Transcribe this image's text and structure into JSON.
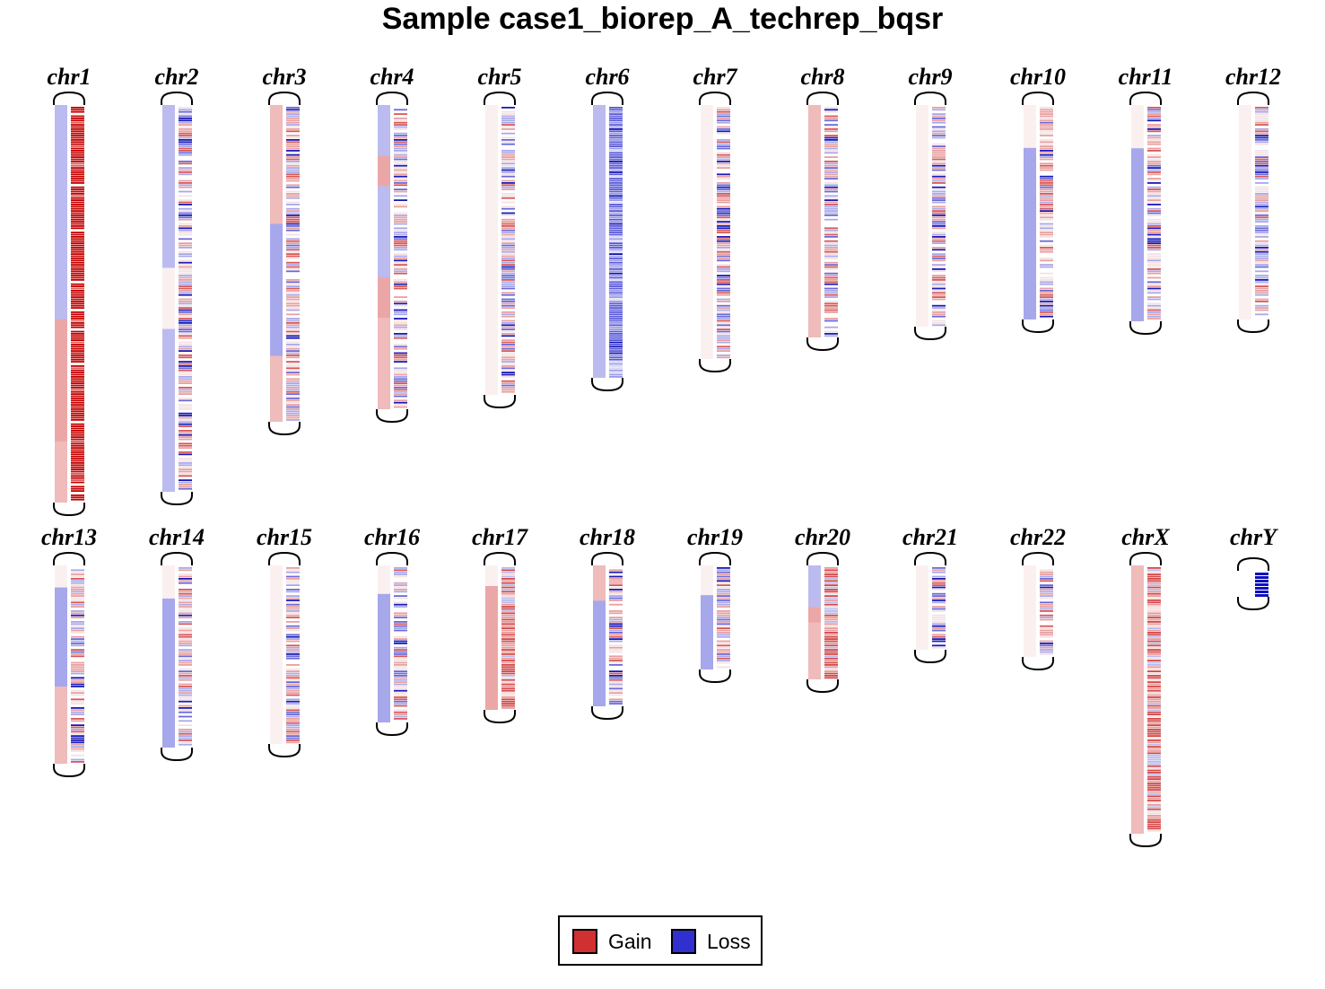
{
  "title": "Sample case1_biorep_A_techrep_bqsr",
  "legend": [
    {
      "label": "Gain",
      "color": "#d03030"
    },
    {
      "label": "Loss",
      "color": "#3030d0"
    }
  ],
  "colors": {
    "gain_strong": "#c00000",
    "loss_strong": "#0000c0",
    "neutral": "#fdf4f4",
    "outline": "#000000"
  },
  "chart_data": {
    "type": "heatmap",
    "description_note": "Karyogram of copy-number segments per chromosome; left track = segment calls, right track = bin-level log2 ratios",
    "chromosomes": [
      {
        "name": "chr1",
        "segments": [
          [
            "loss",
            0.35
          ],
          [
            "gain",
            0.2
          ],
          [
            "gain",
            0.05
          ]
        ],
        "bins": "strong-gain"
      },
      {
        "name": "chr2",
        "segments": [
          [
            "loss",
            0.4
          ],
          [
            "neutral",
            0.15
          ],
          [
            "loss",
            0.4
          ]
        ],
        "bins": "mixed"
      },
      {
        "name": "chr3",
        "segments": [
          [
            "gain",
            0.45
          ],
          [
            "loss",
            0.5
          ],
          [
            "gain",
            0.25
          ]
        ],
        "bins": "mixed"
      },
      {
        "name": "chr4",
        "segments": [
          [
            "loss",
            0.25
          ],
          [
            "gain",
            0.15
          ],
          [
            "loss",
            0.45
          ],
          [
            "gain",
            0.2
          ],
          [
            "gain",
            0.45
          ]
        ],
        "bins": "mixed"
      },
      {
        "name": "chr5",
        "segments": [
          [
            "neutral",
            0.05
          ]
        ],
        "bins": "mixed"
      },
      {
        "name": "chr6",
        "segments": [
          [
            "loss",
            0.45
          ]
        ],
        "bins": "loss"
      },
      {
        "name": "chr7",
        "segments": [
          [
            "neutral",
            0.1
          ]
        ],
        "bins": "mixed"
      },
      {
        "name": "chr8",
        "segments": [
          [
            "gain",
            0.3
          ]
        ],
        "bins": "mixed"
      },
      {
        "name": "chr9",
        "segments": [
          [
            "neutral",
            0.1
          ]
        ],
        "bins": "mixed"
      },
      {
        "name": "chr10",
        "segments": [
          [
            "neutral",
            0.1
          ],
          [
            "loss",
            0.4
          ]
        ],
        "bins": "mixed"
      },
      {
        "name": "chr11",
        "segments": [
          [
            "neutral",
            0.1
          ],
          [
            "loss",
            0.4
          ]
        ],
        "bins": "mixed"
      },
      {
        "name": "chr12",
        "segments": [
          [
            "neutral",
            0.1
          ]
        ],
        "bins": "mixed"
      },
      {
        "name": "chr13",
        "segments": [
          [
            "neutral",
            0.1
          ],
          [
            "loss",
            0.45
          ],
          [
            "gain",
            0.35
          ]
        ],
        "bins": "mixed"
      },
      {
        "name": "chr14",
        "segments": [
          [
            "neutral",
            0.1
          ],
          [
            "loss",
            0.45
          ]
        ],
        "bins": "mixed"
      },
      {
        "name": "chr15",
        "segments": [
          [
            "neutral",
            0.1
          ]
        ],
        "bins": "mixed"
      },
      {
        "name": "chr16",
        "segments": [
          [
            "neutral",
            0.05
          ],
          [
            "loss",
            0.45
          ]
        ],
        "bins": "mixed"
      },
      {
        "name": "chr17",
        "segments": [
          [
            "neutral",
            0.05
          ],
          [
            "gain",
            0.6
          ]
        ],
        "bins": "gain"
      },
      {
        "name": "chr18",
        "segments": [
          [
            "gain",
            0.15
          ],
          [
            "loss",
            0.45
          ]
        ],
        "bins": "mixed"
      },
      {
        "name": "chr19",
        "segments": [
          [
            "neutral",
            0.05
          ],
          [
            "loss",
            0.25
          ]
        ],
        "bins": "mixed"
      },
      {
        "name": "chr20",
        "segments": [
          [
            "loss",
            0.4
          ],
          [
            "gain",
            0.15
          ],
          [
            "gain",
            0.55
          ]
        ],
        "bins": "gain"
      },
      {
        "name": "chr21",
        "segments": [
          [
            "neutral",
            0.05
          ]
        ],
        "bins": "mixed"
      },
      {
        "name": "chr22",
        "segments": [
          [
            "neutral",
            0.05
          ]
        ],
        "bins": "mixed"
      },
      {
        "name": "chrX",
        "segments": [
          [
            "gain",
            0.3
          ]
        ],
        "bins": "gain"
      },
      {
        "name": "chrY",
        "segments": [],
        "bins": "loss-strong"
      }
    ]
  }
}
